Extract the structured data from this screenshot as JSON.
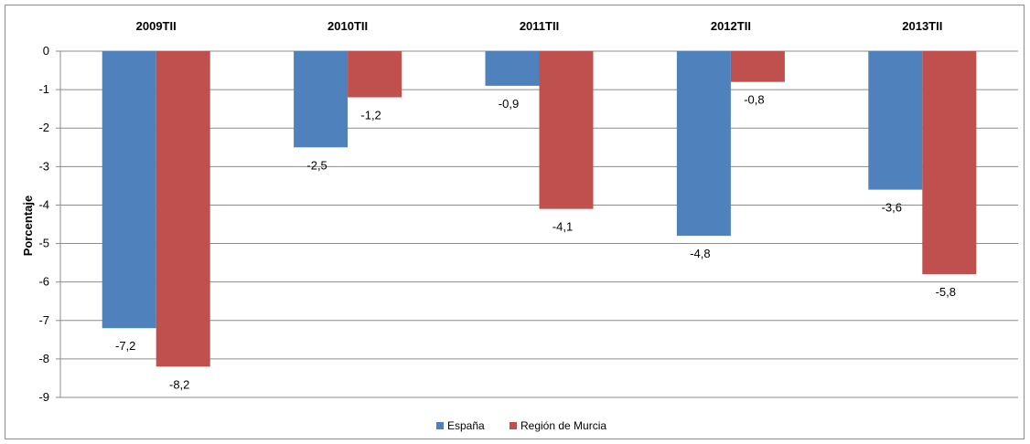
{
  "chart_data": {
    "type": "bar",
    "title": "",
    "xlabel": "",
    "ylabel": "Porcentaje",
    "categories": [
      "2009TII",
      "2010TII",
      "2011TII",
      "2012TII",
      "2013TII"
    ],
    "series": [
      {
        "name": "España",
        "color": "#4f81bd",
        "values": [
          -7.2,
          -2.5,
          -0.9,
          -4.8,
          -3.6
        ],
        "labels": [
          "-7,2",
          "-2,5",
          "-0,9",
          "-4,8",
          "-3,6"
        ]
      },
      {
        "name": "Región de Murcia",
        "color": "#c0504d",
        "values": [
          -8.2,
          -1.2,
          -4.1,
          -0.8,
          -5.8
        ],
        "labels": [
          "-8,2",
          "-1,2",
          "-4,1",
          "-0,8",
          "-5,8"
        ]
      }
    ],
    "ylim": [
      -9,
      0
    ],
    "yticks": [
      "0",
      "-1",
      "-2",
      "-3",
      "-4",
      "-5",
      "-6",
      "-7",
      "-8",
      "-9"
    ],
    "grid": true,
    "category_labels_position": "top",
    "legend_position": "bottom"
  }
}
